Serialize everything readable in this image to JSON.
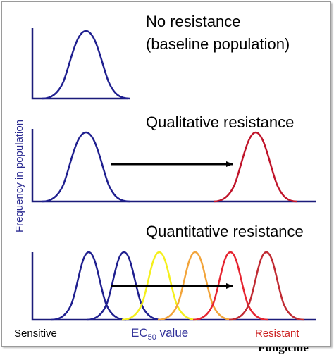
{
  "panels": {
    "none": {
      "title_line1": "No resistance",
      "title_line2": "(baseline population)"
    },
    "qualitative": {
      "title": "Qualitative resistance"
    },
    "quantitative": {
      "title": "Quantitative resistance"
    }
  },
  "y_label": "Frequency in population",
  "x_axis": {
    "left": "Sensitive",
    "center_prefix": "EC",
    "center_sub": "50",
    "center_suffix": " value",
    "right": "Resistant"
  },
  "bottom_cutoff_text": "Fungicide",
  "colors": {
    "axis": "#1b1b7a",
    "blue": "#1f1f8f",
    "red": "#c0142a",
    "yellow": "#f4ef1c",
    "orange": "#f2a43a",
    "bright_red": "#e62430",
    "dark_red": "#c02a32",
    "arrow": "#000000",
    "label_blue": "#33339a",
    "label_red": "#cc2020"
  }
}
